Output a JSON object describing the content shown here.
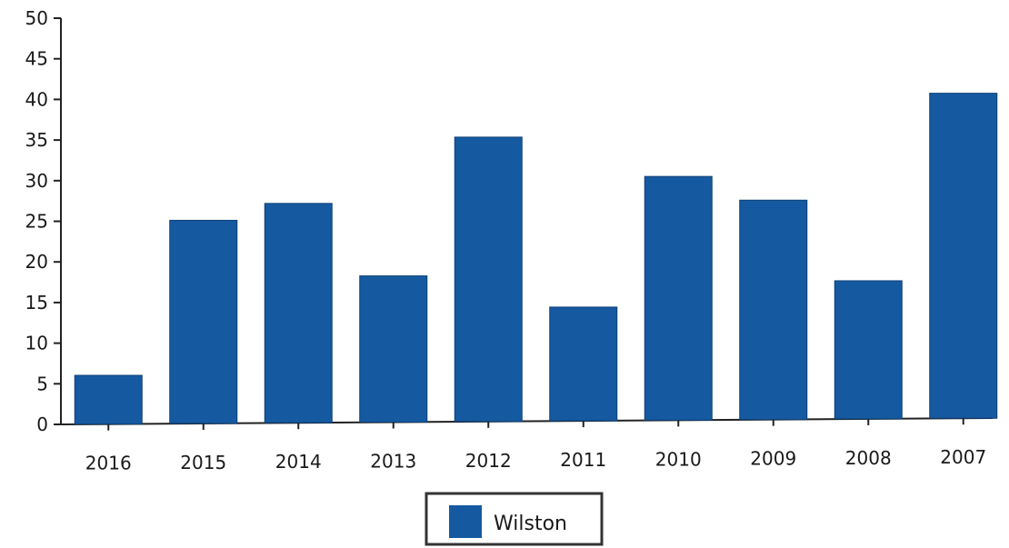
{
  "chart_data": {
    "type": "bar",
    "categories": [
      "2016",
      "2015",
      "2014",
      "2013",
      "2012",
      "2011",
      "2010",
      "2009",
      "2008",
      "2007"
    ],
    "series": [
      {
        "name": "Wilston",
        "values": [
          6,
          25,
          27,
          18,
          35,
          14,
          30,
          27,
          17,
          40
        ],
        "color": "#155aa1"
      }
    ],
    "title": "",
    "xlabel": "",
    "ylabel": "",
    "ylim": [
      0,
      50
    ],
    "yticks": [
      "0",
      "5",
      "10",
      "15",
      "20",
      "25",
      "30",
      "35",
      "40",
      "45",
      "50"
    ],
    "grid": false,
    "legend_position": "bottom-center"
  }
}
